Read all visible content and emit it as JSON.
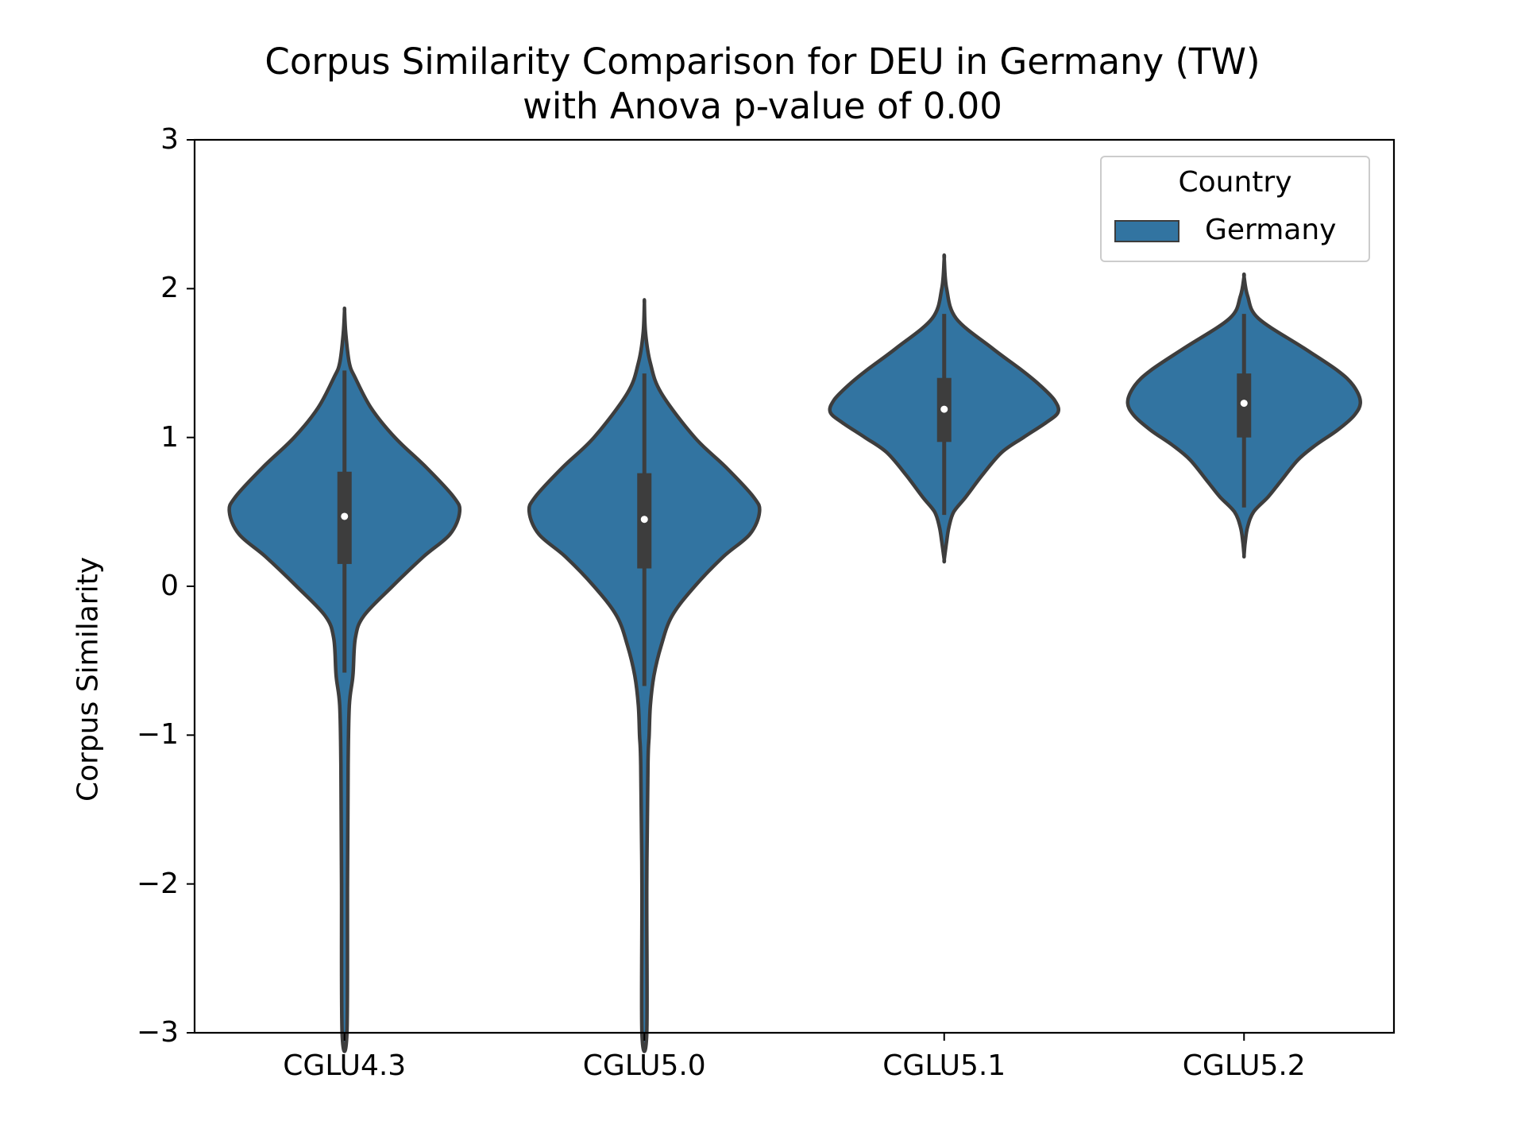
{
  "chart_data": {
    "type": "violin",
    "title_lines": [
      "Corpus Similarity Comparison for DEU in Germany (TW)",
      "with Anova p-value of 0.00"
    ],
    "xlabel": "",
    "ylabel": "Corpus Similarity",
    "ylim": [
      -3,
      3
    ],
    "yticks": [
      3,
      2,
      1,
      0,
      -1,
      -2,
      -3
    ],
    "ytick_labels": [
      "3",
      "2",
      "1",
      "0",
      "−1",
      "−2",
      "−3"
    ],
    "categories": [
      "CGLU4.3",
      "CGLU5.0",
      "CGLU5.1",
      "CGLU5.2"
    ],
    "fill_color": "#3274a1",
    "edge_color": "#3d3d3d",
    "legend": {
      "title": "Country",
      "position": "top-right",
      "items": [
        {
          "label": "Germany",
          "color": "#3274a1"
        }
      ]
    },
    "series": [
      {
        "name": "Germany",
        "violins": [
          {
            "category": "CGLU4.3",
            "min": -3.0,
            "max": 1.85,
            "whisker_low": -0.58,
            "whisker_high": 1.45,
            "q1": 0.15,
            "median": 0.47,
            "q3": 0.77,
            "density_profile": [
              [
                1.85,
                0.0
              ],
              [
                1.7,
                0.01
              ],
              [
                1.5,
                0.04
              ],
              [
                1.4,
                0.09
              ],
              [
                1.2,
                0.22
              ],
              [
                1.0,
                0.42
              ],
              [
                0.8,
                0.68
              ],
              [
                0.6,
                0.91
              ],
              [
                0.5,
                0.96
              ],
              [
                0.35,
                0.88
              ],
              [
                0.2,
                0.66
              ],
              [
                0.0,
                0.4
              ],
              [
                -0.2,
                0.16
              ],
              [
                -0.35,
                0.09
              ],
              [
                -0.6,
                0.07
              ],
              [
                -0.8,
                0.04
              ],
              [
                -1.2,
                0.03
              ],
              [
                -2.0,
                0.025
              ],
              [
                -3.0,
                0.02
              ]
            ]
          },
          {
            "category": "CGLU5.0",
            "min": -3.0,
            "max": 1.9,
            "whisker_low": -0.67,
            "whisker_high": 1.43,
            "q1": 0.12,
            "median": 0.45,
            "q3": 0.76,
            "density_profile": [
              [
                1.9,
                0.0
              ],
              [
                1.7,
                0.01
              ],
              [
                1.5,
                0.05
              ],
              [
                1.3,
                0.14
              ],
              [
                1.0,
                0.42
              ],
              [
                0.8,
                0.68
              ],
              [
                0.6,
                0.91
              ],
              [
                0.5,
                0.96
              ],
              [
                0.35,
                0.88
              ],
              [
                0.2,
                0.66
              ],
              [
                0.0,
                0.42
              ],
              [
                -0.2,
                0.23
              ],
              [
                -0.4,
                0.14
              ],
              [
                -0.6,
                0.08
              ],
              [
                -0.8,
                0.05
              ],
              [
                -1.0,
                0.04
              ],
              [
                -1.2,
                0.03
              ],
              [
                -2.0,
                0.02
              ],
              [
                -3.0,
                0.02
              ]
            ]
          },
          {
            "category": "CGLU5.1",
            "min": 0.18,
            "max": 2.2,
            "whisker_low": 0.48,
            "whisker_high": 1.83,
            "q1": 0.97,
            "median": 1.19,
            "q3": 1.4,
            "density_profile": [
              [
                2.2,
                0.0
              ],
              [
                2.0,
                0.02
              ],
              [
                1.8,
                0.1
              ],
              [
                1.6,
                0.4
              ],
              [
                1.45,
                0.65
              ],
              [
                1.35,
                0.8
              ],
              [
                1.25,
                0.92
              ],
              [
                1.17,
                0.95
              ],
              [
                1.1,
                0.85
              ],
              [
                1.0,
                0.66
              ],
              [
                0.9,
                0.48
              ],
              [
                0.75,
                0.32
              ],
              [
                0.6,
                0.18
              ],
              [
                0.5,
                0.08
              ],
              [
                0.4,
                0.04
              ],
              [
                0.3,
                0.02
              ],
              [
                0.18,
                0.0
              ]
            ]
          },
          {
            "category": "CGLU5.2",
            "min": 0.21,
            "max": 2.08,
            "whisker_low": 0.53,
            "whisker_high": 1.83,
            "q1": 1.0,
            "median": 1.23,
            "q3": 1.43,
            "density_profile": [
              [
                2.08,
                0.0
              ],
              [
                1.95,
                0.03
              ],
              [
                1.8,
                0.12
              ],
              [
                1.6,
                0.5
              ],
              [
                1.45,
                0.78
              ],
              [
                1.35,
                0.91
              ],
              [
                1.24,
                0.97
              ],
              [
                1.15,
                0.92
              ],
              [
                1.05,
                0.78
              ],
              [
                0.95,
                0.6
              ],
              [
                0.85,
                0.45
              ],
              [
                0.7,
                0.3
              ],
              [
                0.6,
                0.2
              ],
              [
                0.5,
                0.08
              ],
              [
                0.4,
                0.03
              ],
              [
                0.3,
                0.01
              ],
              [
                0.21,
                0.0
              ]
            ]
          }
        ]
      }
    ]
  }
}
